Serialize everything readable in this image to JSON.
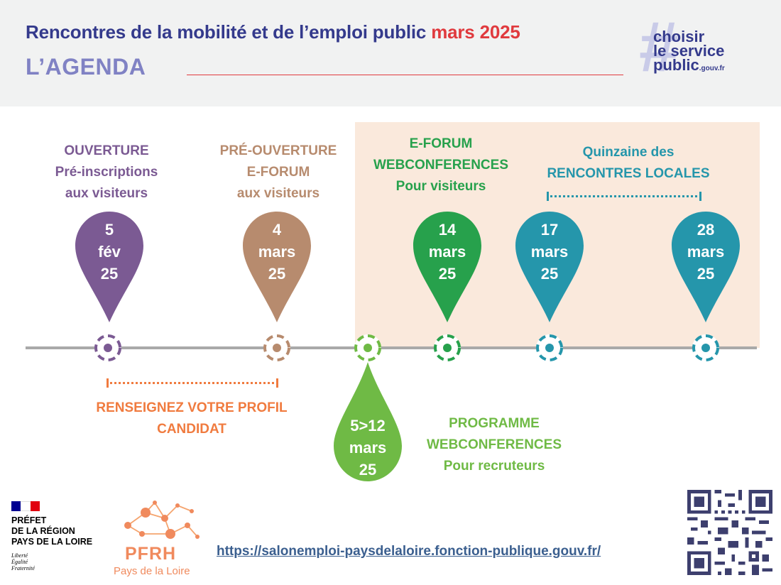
{
  "header": {
    "title_main": "Rencontres de la mobilité et de l’emploi public",
    "title_highlight": "mars 2025",
    "subtitle": "L’AGENDA",
    "brand": {
      "line1": "choisir",
      "line2": "le service",
      "line3": "public",
      "suffix": ".gouv.fr"
    }
  },
  "events": {
    "ouverture": {
      "l1": "OUVERTURE",
      "l2": "Pré-inscriptions",
      "l3": "aux visiteurs",
      "d1": "5",
      "d2": "fév",
      "d3": "25"
    },
    "preouverture": {
      "l1": "PRÉ-OUVERTURE",
      "l2": "E-FORUM",
      "l3": "aux visiteurs",
      "d1": "4",
      "d2": "mars",
      "d3": "25"
    },
    "eforum": {
      "l1": "E-FORUM",
      "l2": "WEBCONFERENCES",
      "l3": "Pour visiteurs",
      "d1": "14",
      "d2": "mars",
      "d3": "25"
    },
    "quinzaine": {
      "l1": "Quinzaine des",
      "l2": "RENCONTRES LOCALES"
    },
    "local_start": {
      "d1": "17",
      "d2": "mars",
      "d3": "25"
    },
    "local_end": {
      "d1": "28",
      "d2": "mars",
      "d3": "25"
    },
    "programme": {
      "l1": "PROGRAMME",
      "l2": "WEBCONFERENCES",
      "l3": "Pour recruteurs",
      "d1": "5>12",
      "d2": "mars",
      "d3": "25"
    },
    "profil": {
      "l1": "RENSEIGNEZ VOTRE PROFIL",
      "l2": "CANDIDAT"
    }
  },
  "colors": {
    "purple": "#7b5a93",
    "tan": "#b78b6e",
    "green": "#27a14c",
    "light_green": "#6fba45",
    "teal": "#2596ab",
    "orange": "#f07b3f",
    "navy": "#343a8c",
    "red": "#e03a3e"
  },
  "footer": {
    "prefet_l1": "PRÉFET",
    "prefet_l2": "DE LA RÉGION",
    "prefet_l3": "PAYS DE LA LOIRE",
    "motto_1": "Liberté",
    "motto_2": "Égalité",
    "motto_3": "Fraternité",
    "pfrh": "PFRH",
    "pfrh_region": "Pays de la Loire",
    "url": "https://salonemploi-paysdelaloire.fonction-publique.gouv.fr/"
  }
}
